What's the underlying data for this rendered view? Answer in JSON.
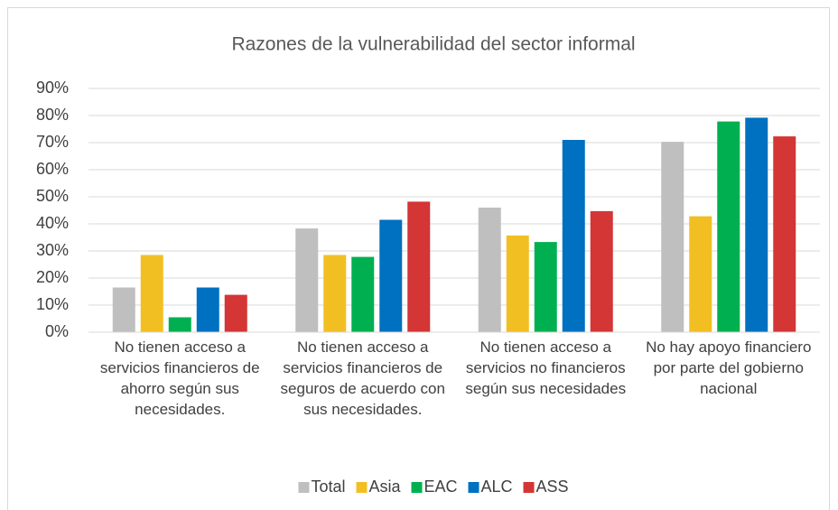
{
  "chart_data": {
    "type": "bar",
    "title": "Razones de la vulnerabilidad del sector informal",
    "categories": [
      "No tienen acceso a servicios financieros de ahorro según sus necesidades.",
      "No tienen acceso a servicios financieros de seguros de acuerdo con sus necesidades.",
      "No tienen acceso a servicios no financieros según sus necesidades",
      "No hay apoyo financiero por parte del gobierno nacional"
    ],
    "series": [
      {
        "name": "Total",
        "color": "#bfbfbf",
        "values": [
          16.5,
          38.3,
          46,
          70.3
        ]
      },
      {
        "name": "Asia",
        "color": "#f2bf23",
        "values": [
          28.5,
          28.5,
          35.7,
          42.8
        ]
      },
      {
        "name": "EAC",
        "color": "#00b050",
        "values": [
          5.5,
          27.8,
          33.3,
          77.8
        ]
      },
      {
        "name": "ALC",
        "color": "#0070c0",
        "values": [
          16.5,
          41.5,
          71,
          79.2
        ]
      },
      {
        "name": "ASS",
        "color": "#d43535",
        "values": [
          13.8,
          48.2,
          44.7,
          72.3
        ]
      }
    ],
    "ylim": [
      0,
      90
    ],
    "yticks": [
      {
        "value": 0,
        "label": "0%"
      },
      {
        "value": 10,
        "label": "10%"
      },
      {
        "value": 20,
        "label": "20%"
      },
      {
        "value": 30,
        "label": "30%"
      },
      {
        "value": 40,
        "label": "40%"
      },
      {
        "value": 50,
        "label": "50%"
      },
      {
        "value": 60,
        "label": "60%"
      },
      {
        "value": 70,
        "label": "70%"
      },
      {
        "value": 80,
        "label": "80%"
      },
      {
        "value": 90,
        "label": "90%"
      }
    ],
    "grid": true,
    "legend": "bottom"
  }
}
